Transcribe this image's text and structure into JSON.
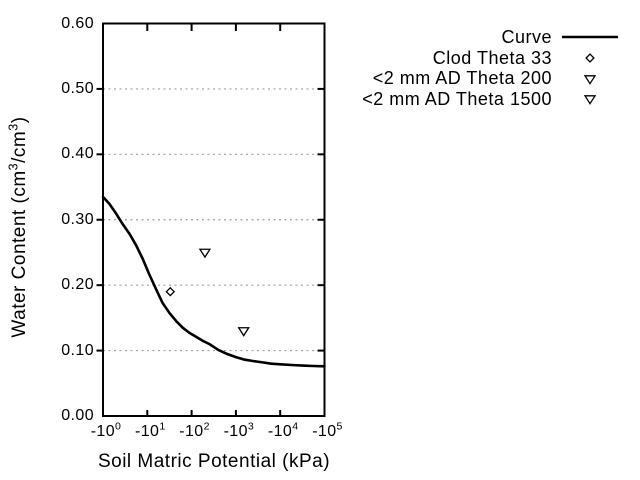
{
  "colors": {
    "foreground": "#000000",
    "background": "#ffffff",
    "gridline": "#a0a0a0",
    "marker_fill": "#ffffff"
  },
  "chart_data": {
    "type": "line",
    "title": "",
    "x_axis": {
      "label": "Soil Matric Potential (kPa)",
      "scale": "negative log10",
      "range_kpa": [
        -1,
        -100000
      ],
      "ticks": [
        {
          "kpa": -1,
          "label": "-10^0"
        },
        {
          "kpa": -10,
          "label": "-10^1"
        },
        {
          "kpa": -100,
          "label": "-10^2"
        },
        {
          "kpa": -1000,
          "label": "-10^3"
        },
        {
          "kpa": -10000,
          "label": "-10^4"
        },
        {
          "kpa": -100000,
          "label": "-10^5"
        }
      ]
    },
    "y_axis": {
      "label": "Water Content (cm^3/cm^3)",
      "range": [
        0,
        0.6
      ],
      "ticks": [
        {
          "value": 0.0,
          "label": "0.00"
        },
        {
          "value": 0.1,
          "label": "0.10"
        },
        {
          "value": 0.2,
          "label": "0.20"
        },
        {
          "value": 0.3,
          "label": "0.30"
        },
        {
          "value": 0.4,
          "label": "0.40"
        },
        {
          "value": 0.5,
          "label": "0.50"
        },
        {
          "value": 0.6,
          "label": "0.60"
        }
      ]
    },
    "grid": "horizontal dotted lines at each 0.10",
    "legend_position": "outside top-right",
    "series": [
      {
        "name": "Curve",
        "kind": "line",
        "marker": "none",
        "points": [
          [
            -1,
            0.335
          ],
          [
            -1.4,
            0.324
          ],
          [
            -2,
            0.309
          ],
          [
            -2.8,
            0.293
          ],
          [
            -4,
            0.278
          ],
          [
            -5.6,
            0.261
          ],
          [
            -7.9,
            0.24
          ],
          [
            -11,
            0.217
          ],
          [
            -16,
            0.193
          ],
          [
            -22,
            0.173
          ],
          [
            -32,
            0.157
          ],
          [
            -45,
            0.145
          ],
          [
            -63,
            0.135
          ],
          [
            -89,
            0.127
          ],
          [
            -126,
            0.121
          ],
          [
            -178,
            0.115
          ],
          [
            -251,
            0.11
          ],
          [
            -400,
            0.101
          ],
          [
            -630,
            0.095
          ],
          [
            -1000,
            0.09
          ],
          [
            -1600,
            0.086
          ],
          [
            -2500,
            0.084
          ],
          [
            -4000,
            0.082
          ],
          [
            -6300,
            0.08
          ],
          [
            -10000,
            0.079
          ],
          [
            -18000,
            0.078
          ],
          [
            -32000,
            0.077
          ],
          [
            -56000,
            0.0765
          ],
          [
            -100000,
            0.076
          ]
        ]
      },
      {
        "name": "Clod Theta 33",
        "kind": "scatter",
        "marker": "diamond-open",
        "points": [
          [
            -33,
            0.19
          ]
        ]
      },
      {
        "name": "<2 mm AD Theta 200",
        "kind": "scatter",
        "marker": "triangle-down-open",
        "points": [
          [
            -200,
            0.25
          ]
        ]
      },
      {
        "name": "<2 mm AD Theta 1500",
        "kind": "scatter",
        "marker": "triangle-down-open",
        "points": [
          [
            -1500,
            0.13
          ]
        ]
      }
    ]
  }
}
